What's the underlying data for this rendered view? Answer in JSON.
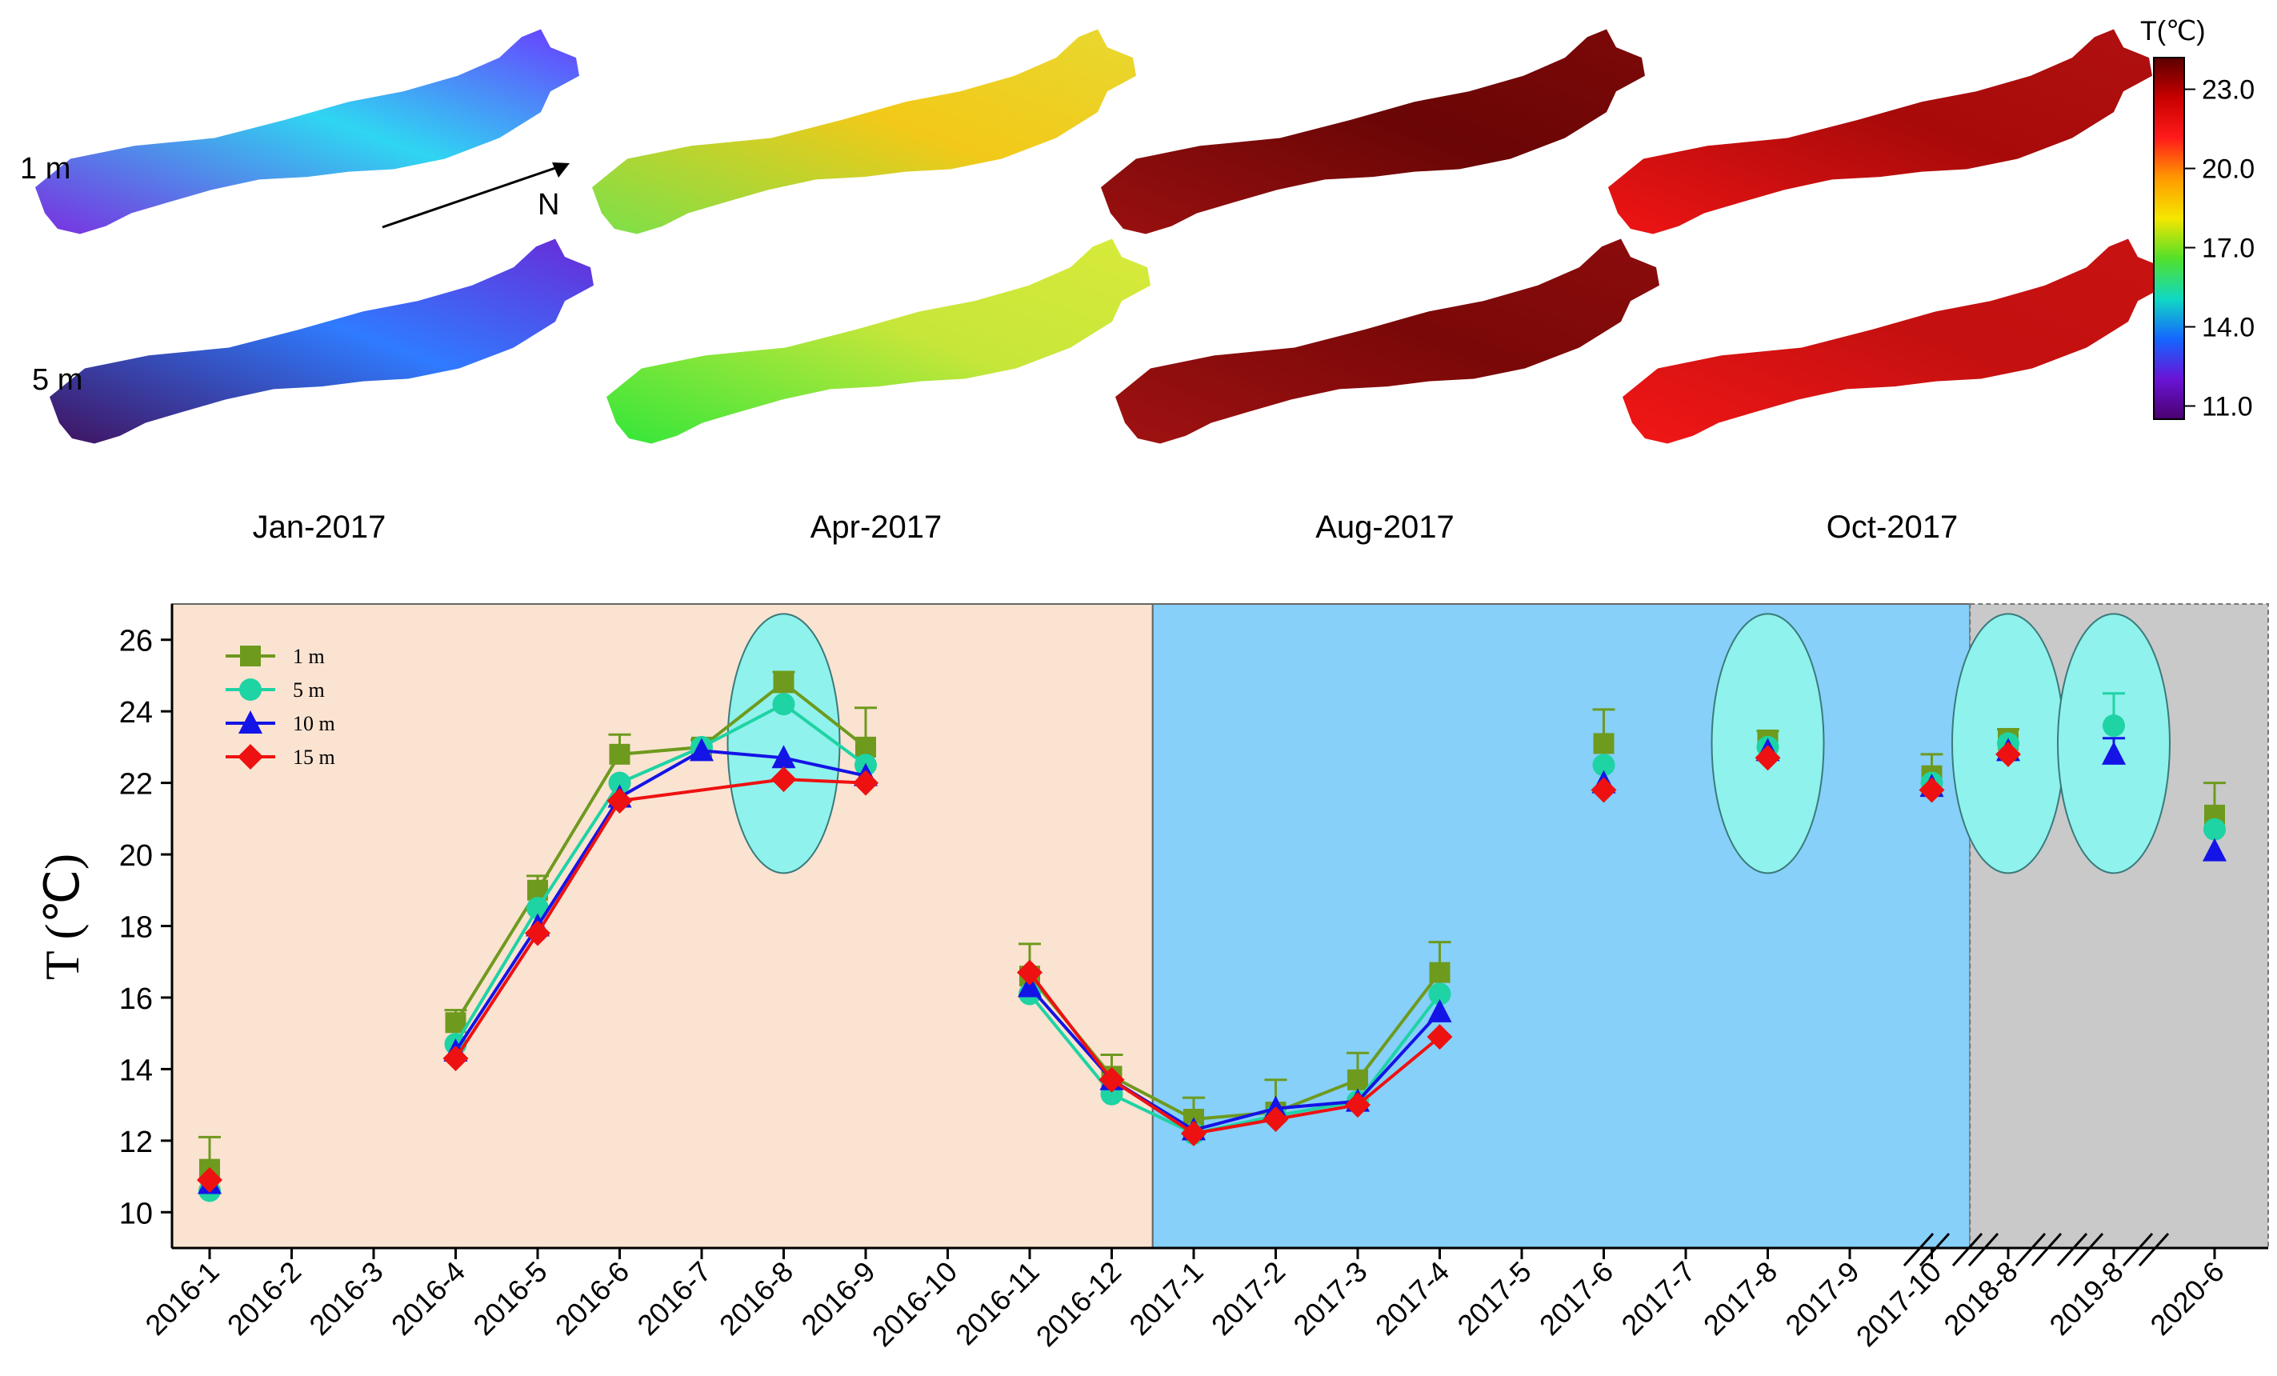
{
  "maps": {
    "panels": [
      {
        "label": "Jan-2017",
        "shallow": "#7a2fe0",
        "deep": "#40125f",
        "north": "#2fd6f2",
        "east": "#6a3bff",
        "north_deep": "#2f7bff",
        "east_deep": "#6a2ad8"
      },
      {
        "label": "Apr-2017",
        "shallow": "#7be04a",
        "deep": "#33e63a",
        "north": "#f2c918",
        "east": "#e8d830",
        "north_deep": "#c7e63a",
        "east_deep": "#d8ea3a"
      },
      {
        "label": "Aug-2017",
        "shallow": "#9b1010",
        "deep": "#a01212",
        "north": "#6a0606",
        "east": "#7d0808",
        "north_deep": "#7a0808",
        "east_deep": "#8c0c0c"
      },
      {
        "label": "Oct-2017",
        "shallow": "#f01414",
        "deep": "#f21616",
        "north": "#a80a0a",
        "east": "#b01010",
        "north_deep": "#c41010",
        "east_deep": "#c81212"
      }
    ],
    "depth_labels": [
      "1 m",
      "5 m"
    ],
    "north_label": "N",
    "colorbar": {
      "title": "T(℃)",
      "ticks": [
        "23.0",
        "20.0",
        "17.0",
        "14.0",
        "11.0"
      ],
      "tick_values": [
        23,
        20,
        17,
        14,
        11
      ],
      "range": [
        10.5,
        24.2
      ],
      "stops": [
        "#5a0000",
        "#c80000",
        "#ff1a1a",
        "#ff9a00",
        "#f5e600",
        "#52e02a",
        "#10d9c2",
        "#1466ff",
        "#6a14d6",
        "#4a006e"
      ]
    }
  },
  "chart_data": {
    "type": "line",
    "ylabel": "T (℃)",
    "ylim": [
      9,
      27
    ],
    "yticks": [
      10,
      12,
      14,
      16,
      18,
      20,
      22,
      24,
      26
    ],
    "categories": [
      "2016-1",
      "2016-2",
      "2016-3",
      "2016-4",
      "2016-5",
      "2016-6",
      "2016-7",
      "2016-8",
      "2016-9",
      "2016-10",
      "2016-11",
      "2016-12",
      "2017-1",
      "2017-2",
      "2017-3",
      "2017-4",
      "2017-5",
      "2017-6",
      "2017-7",
      "2017-8",
      "2017-9",
      "2017-10",
      "2018-8",
      "2019-8",
      "2020-6"
    ],
    "series": [
      {
        "name": "1 m",
        "color": "#6e9a1e",
        "marker": "square",
        "values": [
          11.2,
          null,
          null,
          15.3,
          19.0,
          22.8,
          23.0,
          24.8,
          23.0,
          null,
          16.6,
          13.8,
          12.6,
          12.8,
          13.7,
          16.7,
          null,
          23.1,
          null,
          23.2,
          null,
          22.2,
          23.2,
          null,
          21.1
        ],
        "errors": [
          0.9,
          null,
          null,
          0.35,
          0.4,
          0.55,
          0.2,
          0.3,
          1.1,
          null,
          0.9,
          0.6,
          0.6,
          0.9,
          0.75,
          0.85,
          null,
          0.95,
          null,
          0.25,
          null,
          0.6,
          0.3,
          null,
          0.9
        ]
      },
      {
        "name": "5 m",
        "color": "#1ed3a4",
        "marker": "circle",
        "values": [
          10.6,
          null,
          null,
          14.7,
          18.5,
          22.0,
          23.0,
          24.2,
          22.5,
          null,
          16.1,
          13.3,
          12.2,
          12.7,
          13.1,
          16.1,
          null,
          22.5,
          null,
          23.0,
          null,
          22.0,
          23.1,
          23.6,
          20.7
        ],
        "errors": [
          null,
          null,
          null,
          null,
          null,
          null,
          null,
          null,
          null,
          null,
          null,
          null,
          null,
          null,
          null,
          null,
          null,
          null,
          null,
          null,
          null,
          null,
          null,
          0.9,
          null
        ]
      },
      {
        "name": "10 m",
        "color": "#1414e6",
        "marker": "triangle",
        "values": [
          10.8,
          null,
          null,
          14.5,
          18.0,
          21.6,
          22.9,
          22.7,
          22.2,
          null,
          16.3,
          13.7,
          12.3,
          12.9,
          13.1,
          15.6,
          null,
          22.0,
          null,
          22.9,
          null,
          21.9,
          22.9,
          22.8,
          20.1
        ],
        "errors": [
          null,
          null,
          null,
          null,
          null,
          null,
          null,
          null,
          null,
          null,
          null,
          null,
          null,
          null,
          null,
          null,
          null,
          null,
          null,
          null,
          null,
          null,
          null,
          0.45,
          null
        ]
      },
      {
        "name": "15 m",
        "color": "#ee1111",
        "marker": "diamond",
        "values": [
          10.9,
          null,
          null,
          14.3,
          17.8,
          21.5,
          null,
          22.1,
          22.0,
          null,
          16.7,
          13.7,
          12.2,
          12.6,
          13.0,
          14.9,
          null,
          21.8,
          null,
          22.7,
          null,
          21.8,
          22.8,
          null,
          null
        ],
        "errors": [
          null,
          null,
          null,
          null,
          null,
          null,
          null,
          null,
          null,
          null,
          null,
          null,
          null,
          null,
          null,
          null,
          null,
          null,
          null,
          null,
          null,
          null,
          null,
          null,
          null
        ]
      }
    ],
    "connected_segments": [
      [
        0,
        0
      ],
      [
        3,
        8
      ],
      [
        10,
        15
      ]
    ],
    "background_regions": [
      {
        "from": "2016-1",
        "to": "2016-12",
        "color": "#fae3d1"
      },
      {
        "from": "2016-12",
        "to": "2017-10",
        "color": "#86d0f9"
      },
      {
        "from": "2017-10",
        "to": "2020-6",
        "color": "#c9c9c9"
      }
    ],
    "highlight_ellipses": [
      "2016-8",
      "2017-8",
      "2018-8",
      "2019-8"
    ],
    "legend_position": "top-left"
  }
}
